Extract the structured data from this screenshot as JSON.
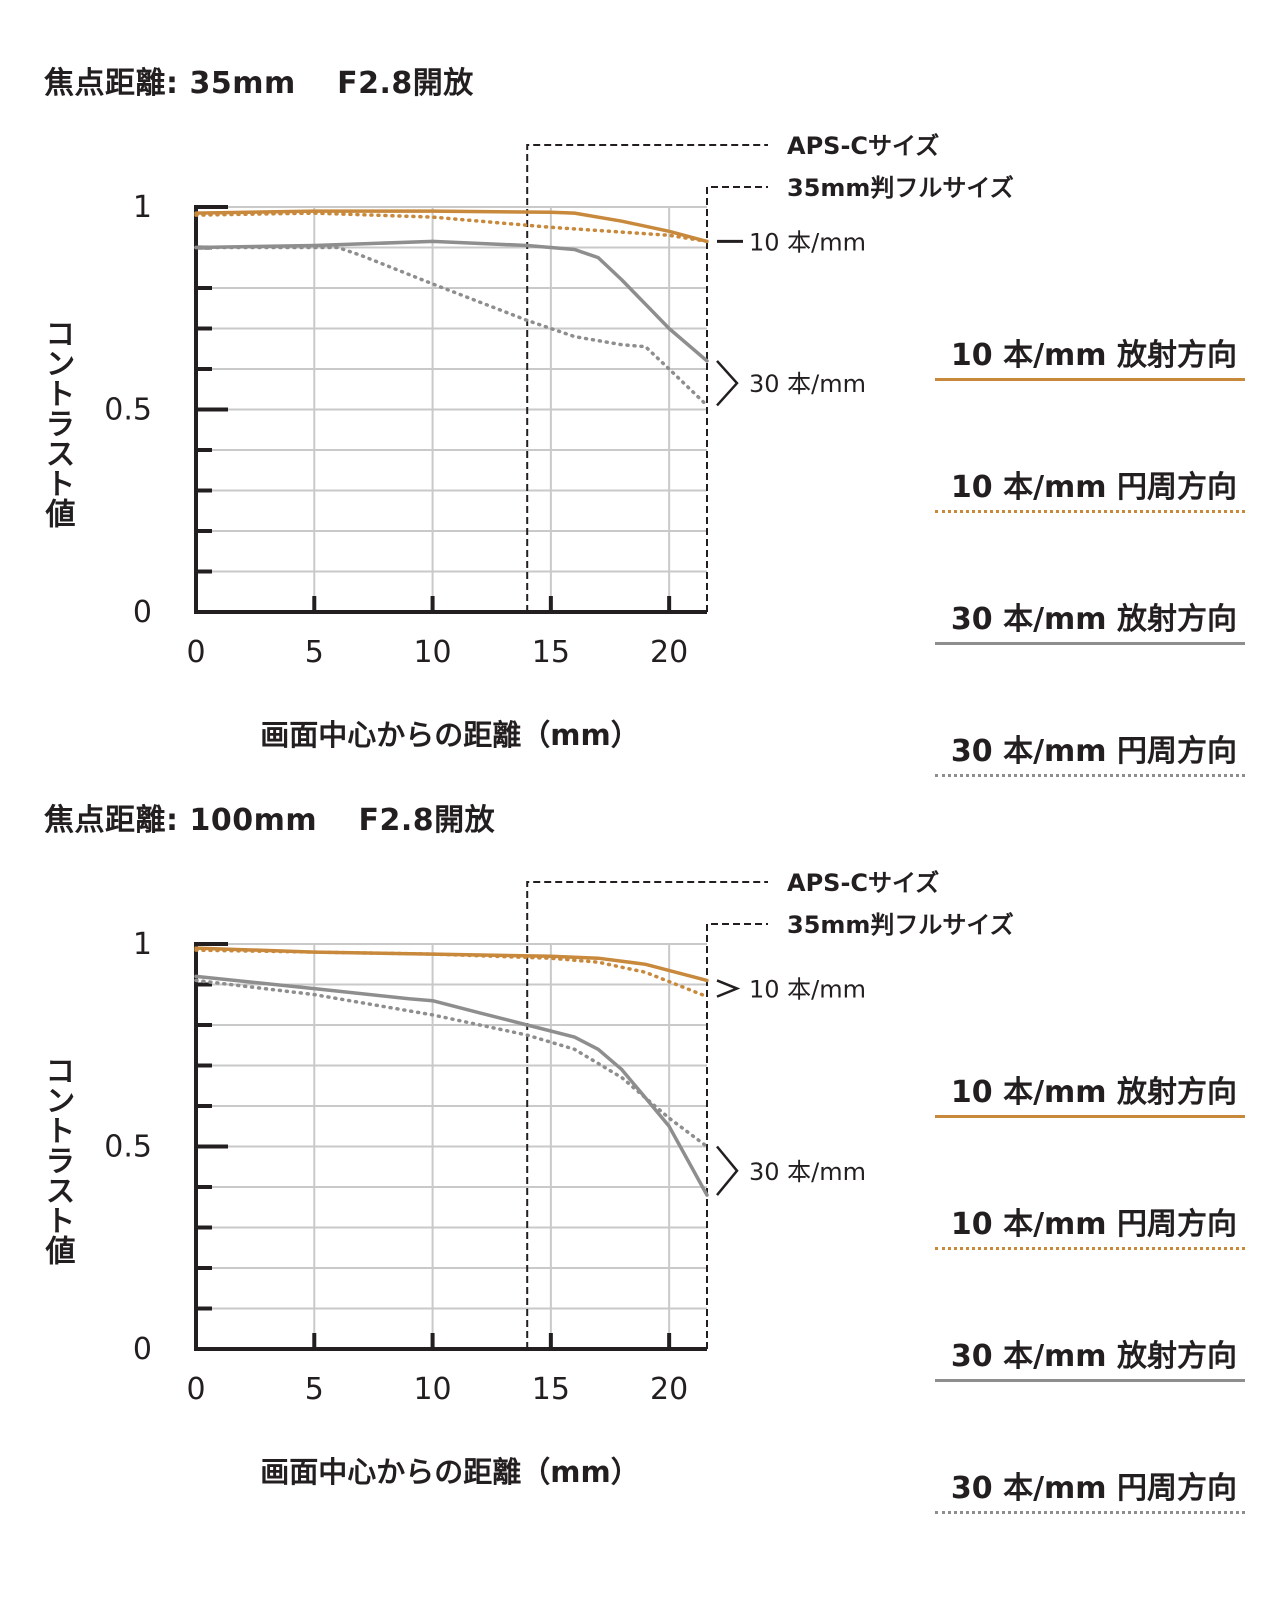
{
  "chart_data": [
    {
      "type": "line",
      "title": "焦点距離: 35mm　 F2.8開放",
      "xlabel": "画面中心からの距離（mm）",
      "ylabel": "コントラスト値",
      "xlim": [
        0,
        21.6
      ],
      "ylim": [
        0,
        1
      ],
      "x_ticks": [
        "0",
        "5",
        "10",
        "15",
        "20"
      ],
      "y_ticks": [
        "0",
        "0.5",
        "1"
      ],
      "grid": true,
      "frame_markers": [
        {
          "label": "APS-Cサイズ",
          "x": 14
        },
        {
          "label": "35mm判フルサイズ",
          "x": 21.6
        }
      ],
      "freq_labels": [
        {
          "label": "10 本/mm",
          "group": "10"
        },
        {
          "label": "30 本/mm",
          "group": "30"
        }
      ],
      "series": [
        {
          "name": "10 本/mm 放射方向",
          "style": "solid",
          "color": "#c8893c",
          "points": [
            [
              0,
              0.985
            ],
            [
              5,
              0.99
            ],
            [
              10,
              0.99
            ],
            [
              15,
              0.987
            ],
            [
              16,
              0.985
            ],
            [
              18,
              0.965
            ],
            [
              20,
              0.94
            ],
            [
              21.6,
              0.915
            ]
          ]
        },
        {
          "name": "10 本/mm 円周方向",
          "style": "dotted",
          "color": "#c8893c",
          "points": [
            [
              0,
              0.98
            ],
            [
              5,
              0.985
            ],
            [
              10,
              0.975
            ],
            [
              15,
              0.95
            ],
            [
              20,
              0.93
            ],
            [
              21.6,
              0.915
            ]
          ]
        },
        {
          "name": "30 本/mm 放射方向",
          "style": "solid",
          "color": "#8e8e8e",
          "points": [
            [
              0,
              0.9
            ],
            [
              5,
              0.905
            ],
            [
              10,
              0.915
            ],
            [
              14,
              0.905
            ],
            [
              15,
              0.9
            ],
            [
              16,
              0.895
            ],
            [
              17,
              0.875
            ],
            [
              18,
              0.82
            ],
            [
              19,
              0.76
            ],
            [
              20,
              0.7
            ],
            [
              21.6,
              0.62
            ]
          ]
        },
        {
          "name": "30 本/mm 円周方向",
          "style": "dotted",
          "color": "#8e8e8e",
          "points": [
            [
              0,
              0.9
            ],
            [
              6,
              0.9
            ],
            [
              7,
              0.88
            ],
            [
              10,
              0.81
            ],
            [
              14,
              0.72
            ],
            [
              16,
              0.68
            ],
            [
              18,
              0.66
            ],
            [
              19,
              0.655
            ],
            [
              20,
              0.6
            ],
            [
              21.6,
              0.51
            ]
          ]
        }
      ]
    },
    {
      "type": "line",
      "title": "焦点距離: 100mm　 F2.8開放",
      "xlabel": "画面中心からの距離（mm）",
      "ylabel": "コントラスト値",
      "xlim": [
        0,
        21.6
      ],
      "ylim": [
        0,
        1
      ],
      "x_ticks": [
        "0",
        "5",
        "10",
        "15",
        "20"
      ],
      "y_ticks": [
        "0",
        "0.5",
        "1"
      ],
      "grid": true,
      "frame_markers": [
        {
          "label": "APS-Cサイズ",
          "x": 14
        },
        {
          "label": "35mm判フルサイズ",
          "x": 21.6
        }
      ],
      "freq_labels": [
        {
          "label": "10 本/mm",
          "group": "10"
        },
        {
          "label": "30 本/mm",
          "group": "30"
        }
      ],
      "series": [
        {
          "name": "10 本/mm 放射方向",
          "style": "solid",
          "color": "#c8893c",
          "points": [
            [
              0,
              0.99
            ],
            [
              5,
              0.98
            ],
            [
              10,
              0.975
            ],
            [
              15,
              0.97
            ],
            [
              17,
              0.965
            ],
            [
              19,
              0.95
            ],
            [
              21.6,
              0.91
            ]
          ]
        },
        {
          "name": "10 本/mm 円周方向",
          "style": "dotted",
          "color": "#c8893c",
          "points": [
            [
              0,
              0.985
            ],
            [
              5,
              0.98
            ],
            [
              10,
              0.975
            ],
            [
              15,
              0.965
            ],
            [
              17,
              0.955
            ],
            [
              19,
              0.93
            ],
            [
              21.6,
              0.87
            ]
          ]
        },
        {
          "name": "30 本/mm 放射方向",
          "style": "solid",
          "color": "#8e8e8e",
          "points": [
            [
              0,
              0.92
            ],
            [
              5,
              0.89
            ],
            [
              9,
              0.865
            ],
            [
              10,
              0.86
            ],
            [
              12,
              0.83
            ],
            [
              14,
              0.8
            ],
            [
              16,
              0.77
            ],
            [
              17,
              0.74
            ],
            [
              18,
              0.69
            ],
            [
              19,
              0.62
            ],
            [
              20,
              0.55
            ],
            [
              21.6,
              0.38
            ]
          ]
        },
        {
          "name": "30 本/mm 円周方向",
          "style": "dotted",
          "color": "#8e8e8e",
          "points": [
            [
              0,
              0.91
            ],
            [
              5,
              0.875
            ],
            [
              10,
              0.825
            ],
            [
              14,
              0.775
            ],
            [
              16,
              0.74
            ],
            [
              18,
              0.67
            ],
            [
              20,
              0.57
            ],
            [
              21.6,
              0.5
            ]
          ]
        }
      ]
    }
  ],
  "legend": [
    {
      "label": "10 本/mm 放射方向",
      "style": "solid",
      "color": "#c8893c"
    },
    {
      "label": "10 本/mm 円周方向",
      "style": "dotted",
      "color": "#c8893c"
    },
    {
      "label": "30 本/mm 放射方向",
      "style": "solid",
      "color": "#8e8e8e"
    },
    {
      "label": "30 本/mm 円周方向",
      "style": "dotted",
      "color": "#8e8e8e"
    }
  ]
}
